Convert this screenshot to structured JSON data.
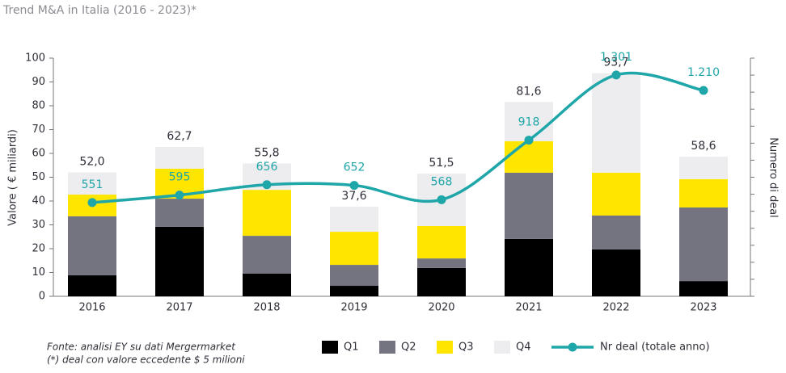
{
  "chart_data": {
    "type": "bar",
    "title": "Trend M&A in Italia (2016 - 2023)*",
    "ylabel": "Valore ( € miliardi)",
    "y2label": "Numero di deal",
    "categories": [
      "2016",
      "2017",
      "2018",
      "2019",
      "2020",
      "2021",
      "2022",
      "2023"
    ],
    "series": [
      {
        "name": "Q1",
        "color": "#000000",
        "values": [
          8.8,
          29.2,
          9.5,
          4.4,
          11.9,
          24.1,
          19.7,
          6.4
        ]
      },
      {
        "name": "Q2",
        "color": "#747480",
        "values": [
          24.8,
          11.8,
          15.9,
          8.8,
          4.0,
          27.8,
          14.2,
          30.9
        ]
      },
      {
        "name": "Q3",
        "color": "#ffe600",
        "values": [
          9.1,
          12.6,
          19.3,
          13.9,
          13.6,
          13.2,
          18.0,
          11.9
        ]
      },
      {
        "name": "Q4",
        "color": "#ededf0",
        "values": [
          9.3,
          9.1,
          11.1,
          10.5,
          22.0,
          16.5,
          41.8,
          9.4
        ]
      },
      {
        "name": "Nr deal (totale anno)",
        "type": "line",
        "axis": "y2",
        "color": "#1fa6a8",
        "values": [
          551,
          595,
          656,
          652,
          568,
          918,
          1301,
          1210
        ],
        "value_labels": [
          "551",
          "595",
          "656",
          "652",
          "568",
          "918",
          "1.301",
          "1.210"
        ]
      }
    ],
    "totals": [
      52.0,
      62.7,
      55.8,
      37.6,
      51.5,
      81.6,
      93.7,
      58.6
    ],
    "total_labels": [
      "52,0",
      "62,7",
      "55,8",
      "37,6",
      "51,5",
      "81,6",
      "93,7",
      "58,6"
    ],
    "ylim": [
      0,
      100
    ],
    "yticks": [
      0,
      10,
      20,
      30,
      40,
      50,
      60,
      70,
      80,
      90,
      100
    ],
    "y2lim": [
      0,
      1400
    ],
    "y2ticks": [
      0,
      100,
      200,
      300,
      400,
      500,
      600,
      700,
      800,
      900,
      1000,
      1100,
      1200,
      1300,
      1400
    ],
    "legend": "bottom",
    "notes": [
      "Fonte: analisi EY su dati Mergermarket",
      "(*) deal con valore eccedente $ 5 milioni"
    ]
  }
}
